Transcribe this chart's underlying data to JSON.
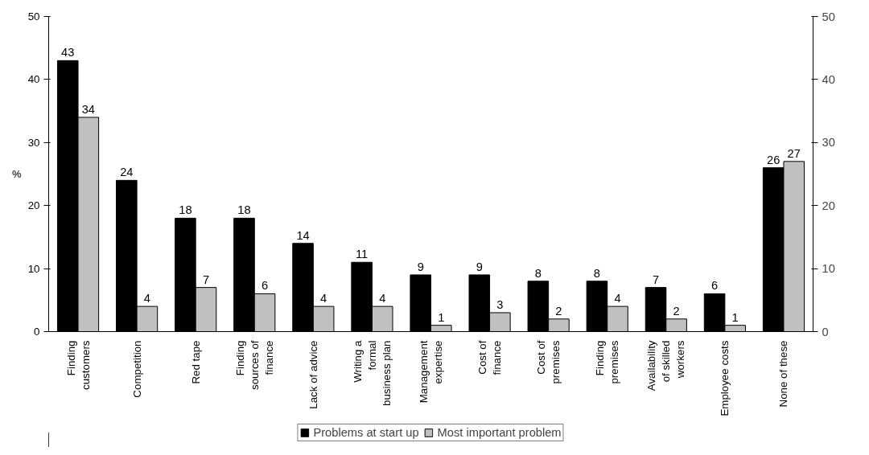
{
  "chart_data": {
    "type": "bar",
    "ylabel": "%",
    "categories": [
      "Finding customers",
      "Competition",
      "Red tape",
      "Finding sources of finance",
      "Lack of advice",
      "Writing a formal business plan",
      "Management expertise",
      "Cost of finance",
      "Cost of premises",
      "Finding premises",
      "Availability of skilled workers",
      "Employee costs",
      "None of these"
    ],
    "series": [
      {
        "name": "Problems at start up",
        "color": "#000000",
        "values": [
          43,
          24,
          18,
          18,
          14,
          11,
          9,
          9,
          8,
          8,
          7,
          6,
          26
        ]
      },
      {
        "name": "Most important problem",
        "color": "#c0c0c0",
        "values": [
          34,
          4,
          7,
          6,
          4,
          4,
          1,
          3,
          2,
          4,
          2,
          1,
          27
        ]
      }
    ],
    "ylim": [
      0,
      50
    ],
    "yticks": [
      0,
      10,
      20,
      30,
      40,
      50
    ],
    "y2lim": [
      0,
      50
    ],
    "y2ticks": [
      0,
      10,
      20,
      30,
      40,
      50
    ],
    "data_labels": true,
    "grid": false,
    "legend": "bottom"
  }
}
